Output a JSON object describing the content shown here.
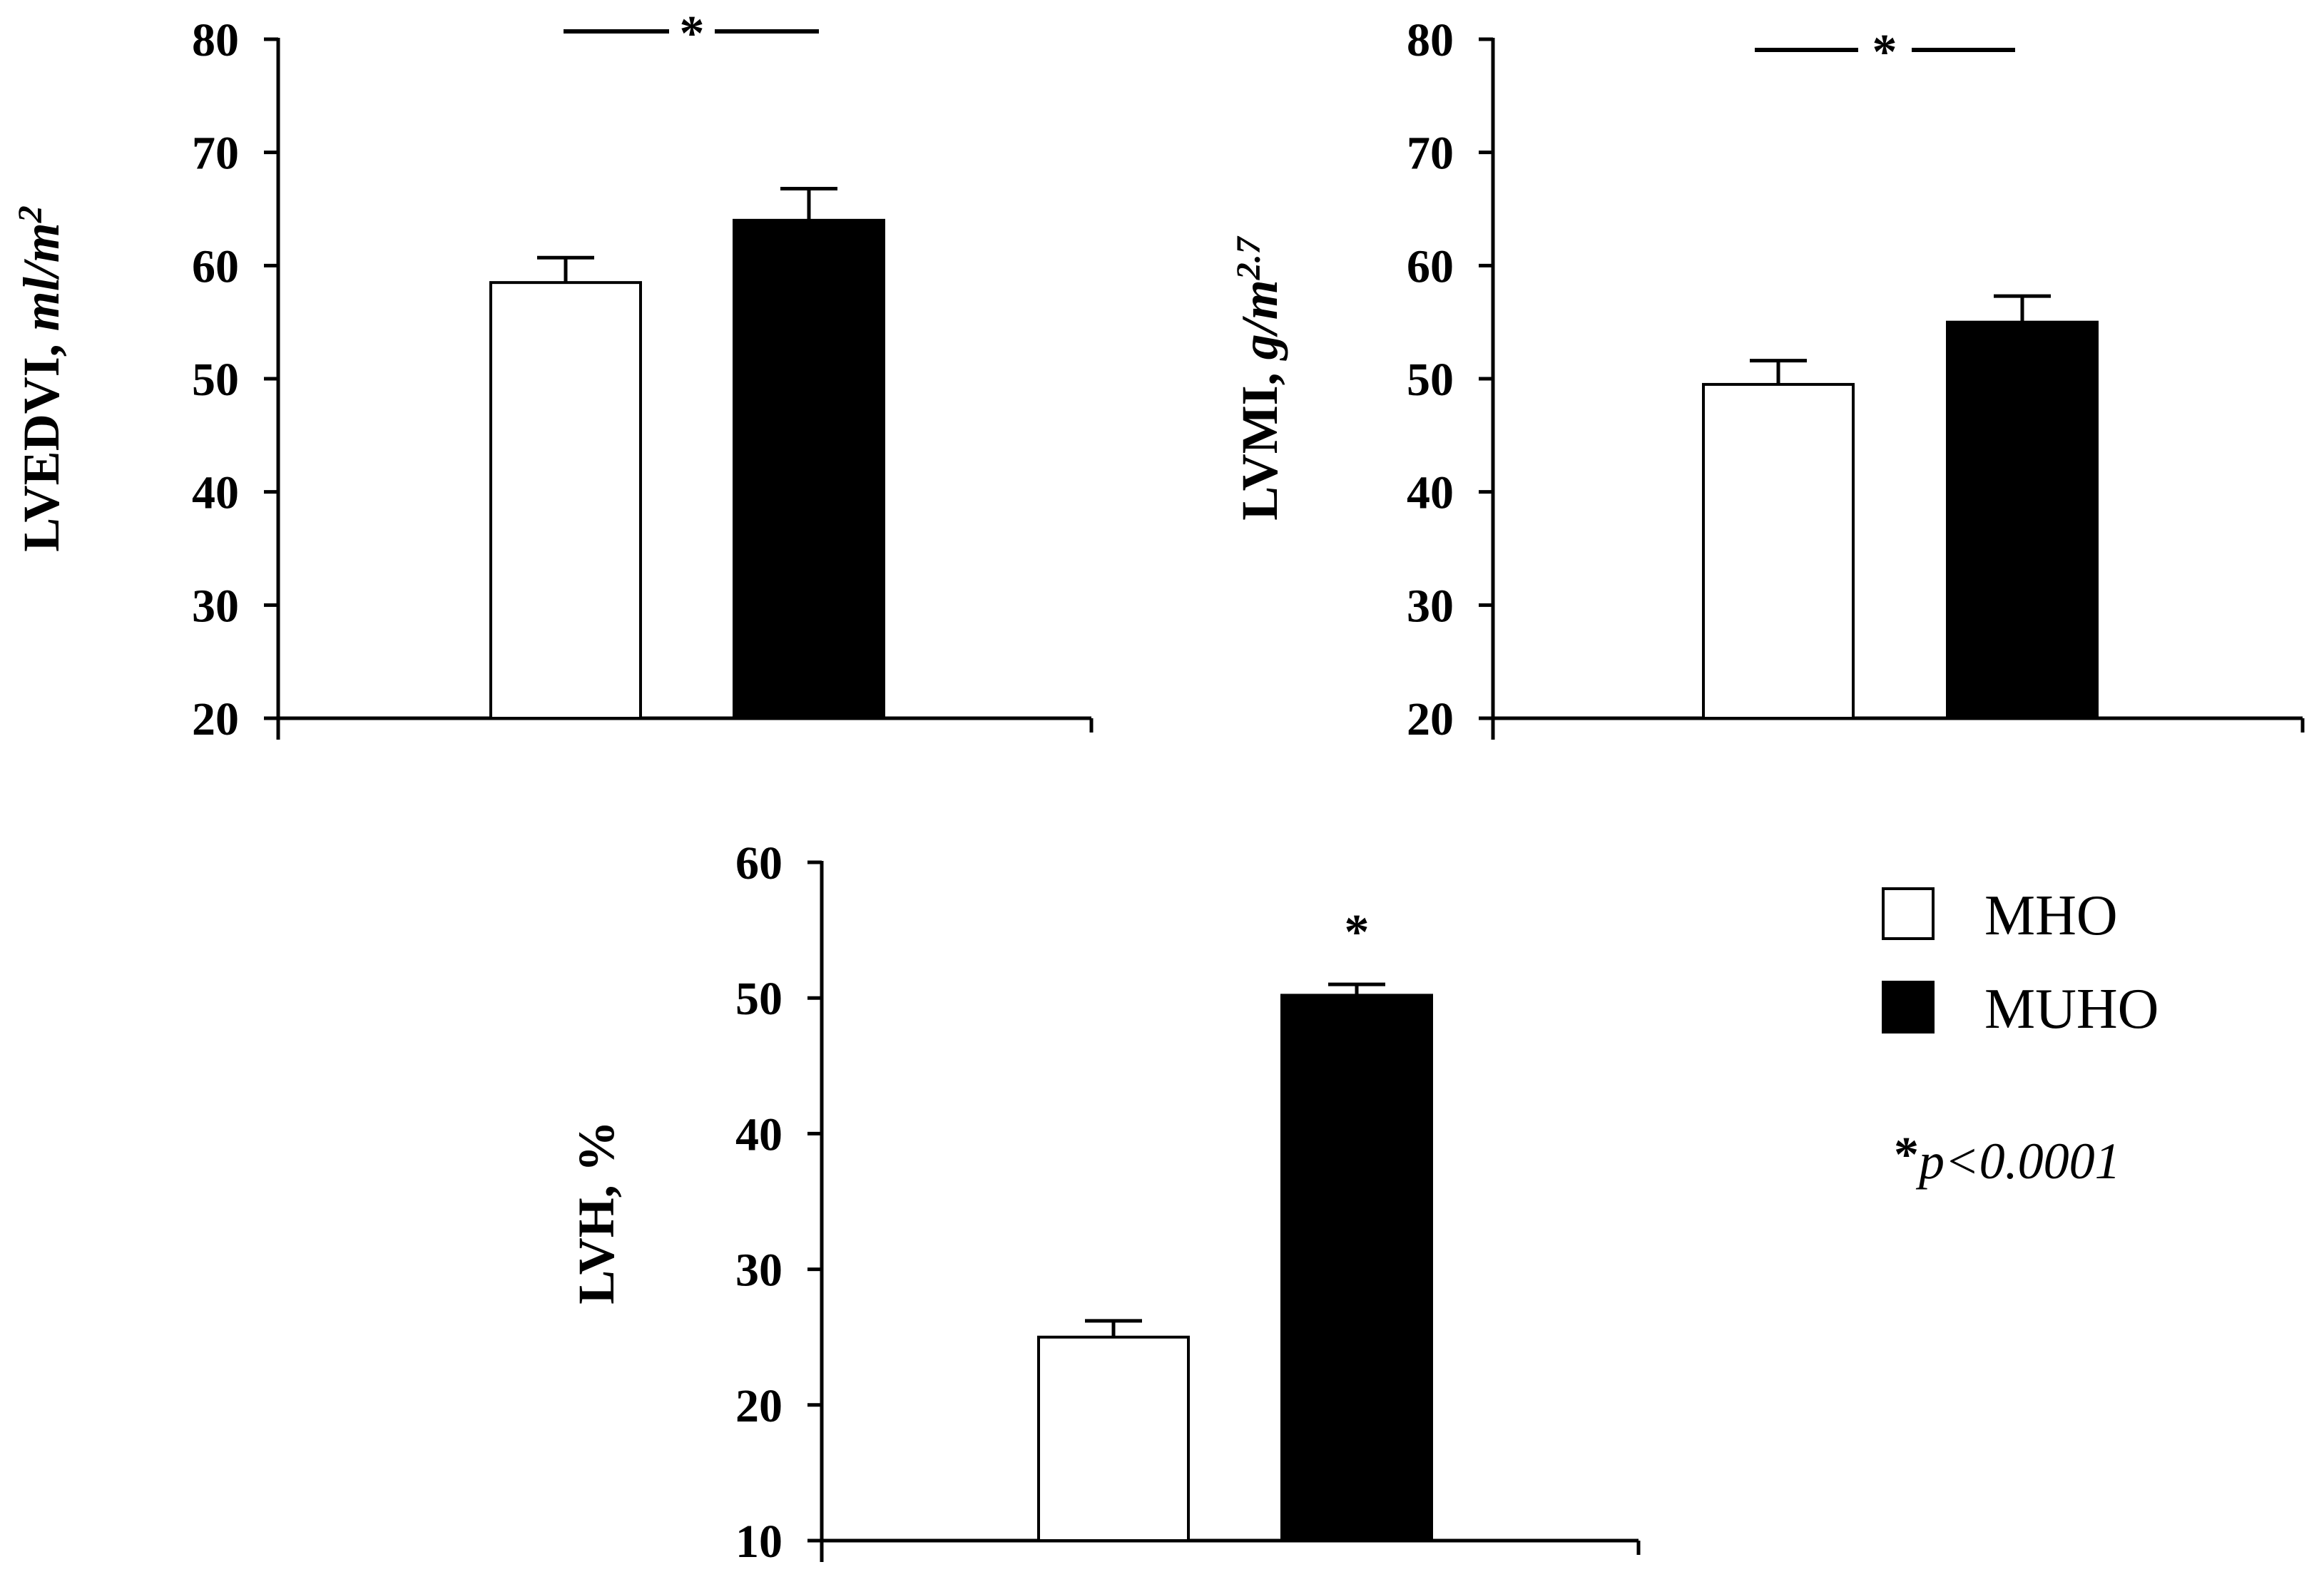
{
  "chart_data": [
    {
      "type": "bar",
      "id": "lvedvi",
      "ylabel_main": "LVEDVI, ",
      "ylabel_unit": "ml/m",
      "ylabel_sup": "2",
      "ylim": [
        20,
        80
      ],
      "yticks": [
        "20",
        "30",
        "40",
        "50",
        "60",
        "70",
        "80"
      ],
      "categories": [
        "MHO",
        "MUHO"
      ],
      "values": [
        58.5,
        64
      ],
      "errors": [
        2.2,
        2.8
      ],
      "significance": "*",
      "significance_style": "bracket"
    },
    {
      "type": "bar",
      "id": "lvmi",
      "ylabel_main": "LVMI, ",
      "ylabel_unit": "g/m",
      "ylabel_sup": "2.7",
      "ylim": [
        20,
        80
      ],
      "yticks": [
        "20",
        "30",
        "40",
        "50",
        "60",
        "70",
        "80"
      ],
      "categories": [
        "MHO",
        "MUHO"
      ],
      "values": [
        49.5,
        55
      ],
      "errors": [
        2.1,
        2.3
      ],
      "significance": "*",
      "significance_style": "bracket"
    },
    {
      "type": "bar",
      "id": "lvh",
      "ylabel_main": "LVH, %",
      "ylabel_unit": "",
      "ylabel_sup": "",
      "ylim": [
        10,
        60
      ],
      "yticks": [
        "10",
        "20",
        "30",
        "40",
        "50",
        "60"
      ],
      "categories": [
        "MHO",
        "MUHO"
      ],
      "values": [
        25,
        50.2
      ],
      "errors": [
        1.2,
        0.8
      ],
      "significance": "*",
      "significance_style": "above_bar"
    }
  ],
  "legend": {
    "items": [
      {
        "label": "MHO",
        "fill": "#ffffff"
      },
      {
        "label": "MUHO",
        "fill": "#000000"
      }
    ],
    "note_star": "*",
    "note_text": "p<0.0001"
  },
  "colors": {
    "axis": "#000000",
    "mho": "#ffffff",
    "muho": "#000000"
  }
}
